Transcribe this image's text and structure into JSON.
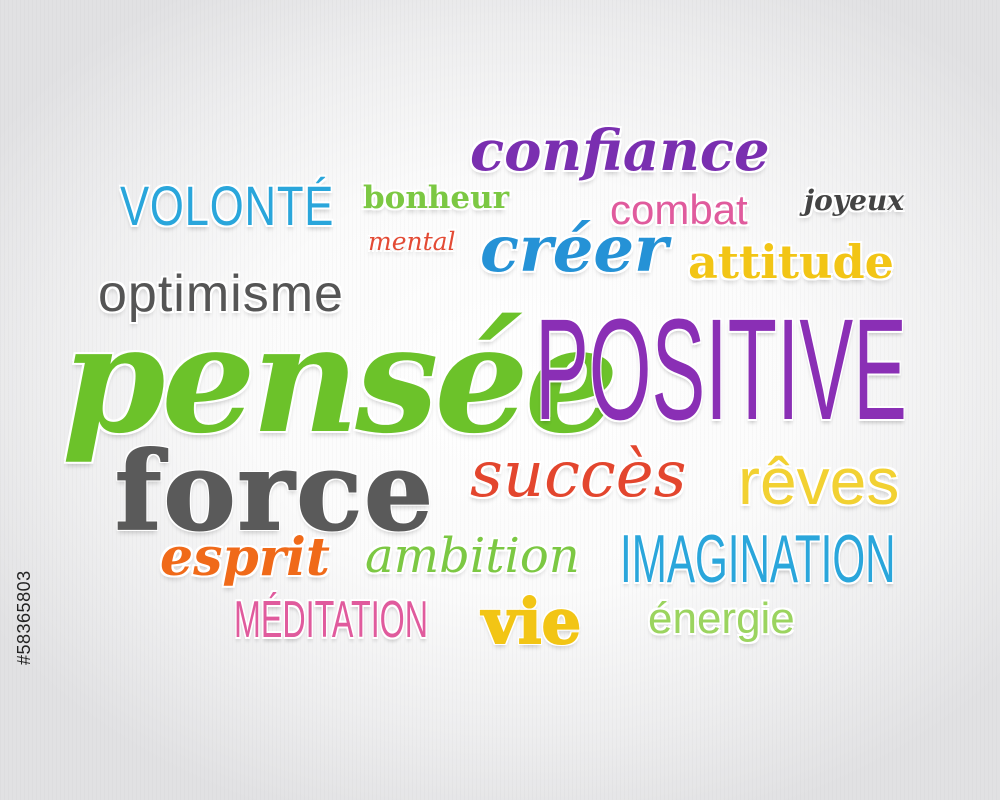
{
  "words": {
    "confiance": "confiance",
    "volonte": "VOLONTÉ",
    "bonheur": "bonheur",
    "combat": "combat",
    "joyeux": "joyeux",
    "mental": "mental",
    "creer": "créer",
    "attitude": "attitude",
    "optimisme": "optimisme",
    "pensee": "pensée",
    "positive": "POSITIVE",
    "force": "force",
    "succes": "succès",
    "reves": "rêves",
    "esprit": "esprit",
    "ambition": "ambition",
    "imagination": "IMAGINATION",
    "meditation": "MÉDITATION",
    "vie": "vie",
    "energie": "énergie"
  },
  "stock_id": "#58365803",
  "colors": {
    "purple": "#8a2fb5",
    "green": "#6cc22a",
    "blue": "#2aa6db",
    "pink": "#e05b9d",
    "yellow": "#f2c515",
    "red": "#e3462e",
    "orange": "#f06a19",
    "gray": "#555555"
  }
}
